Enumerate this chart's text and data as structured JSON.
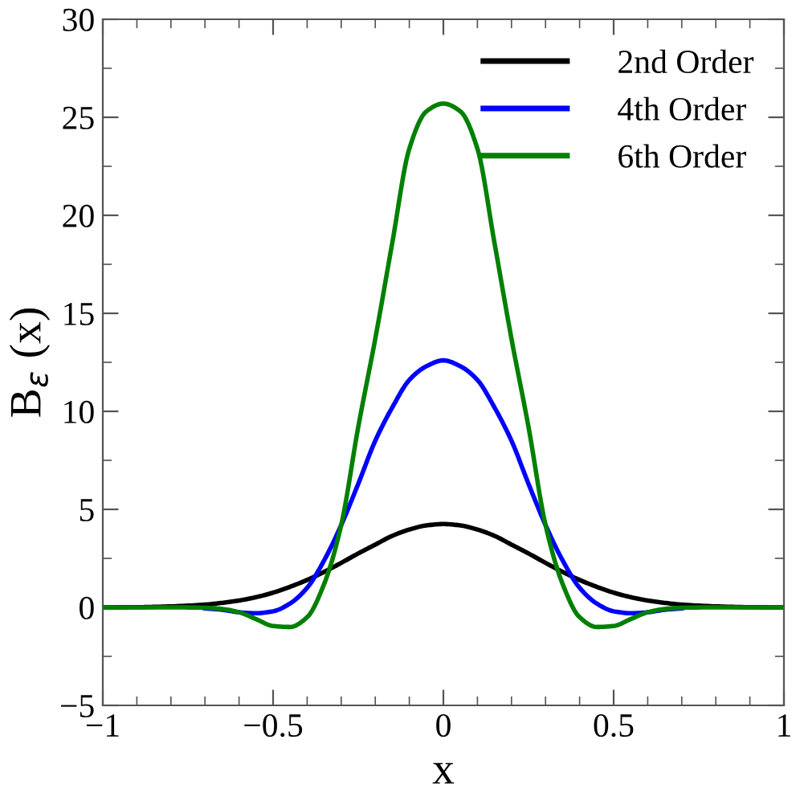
{
  "chart_data": {
    "type": "line",
    "xlabel": "x",
    "ylabel": "B$_{ε}$ (x)",
    "x": [
      -1,
      -0.9,
      -0.8,
      -0.7,
      -0.65,
      -0.6,
      -0.55,
      -0.5,
      -0.45,
      -0.4,
      -0.35,
      -0.3,
      -0.25,
      -0.2,
      -0.15,
      -0.1,
      -0.05,
      0,
      0.05,
      0.1,
      0.15,
      0.2,
      0.25,
      0.3,
      0.35,
      0.4,
      0.45,
      0.5,
      0.55,
      0.6,
      0.65,
      0.7,
      0.8,
      0.9,
      1
    ],
    "series": [
      {
        "name": "2nd Order",
        "color": "#000000",
        "values": [
          0,
          0.01,
          0.05,
          0.14,
          0.23,
          0.35,
          0.52,
          0.75,
          1.05,
          1.4,
          1.81,
          2.27,
          2.75,
          3.2,
          3.65,
          3.97,
          4.18,
          4.25,
          4.18,
          3.97,
          3.65,
          3.2,
          2.75,
          2.27,
          1.81,
          1.4,
          1.05,
          0.75,
          0.52,
          0.35,
          0.23,
          0.14,
          0.05,
          0.01,
          0
        ]
      },
      {
        "name": "4th Order",
        "color": "#0000ff",
        "values": [
          null,
          null,
          null,
          -0.05,
          -0.12,
          -0.25,
          -0.3,
          -0.2,
          0.2,
          1.0,
          2.4,
          4.2,
          6.3,
          8.5,
          10.2,
          11.6,
          12.3,
          12.6,
          12.3,
          11.6,
          10.2,
          8.5,
          6.3,
          4.2,
          2.4,
          1.0,
          0.2,
          -0.2,
          -0.3,
          -0.25,
          -0.12,
          -0.05,
          null,
          null,
          null
        ]
      },
      {
        "name": "6th Order",
        "color": "#008000",
        "values": [
          0,
          0,
          0,
          -0.02,
          -0.08,
          -0.25,
          -0.6,
          -0.95,
          -1.0,
          -0.5,
          1.2,
          4.2,
          9.2,
          13.7,
          18.6,
          23.4,
          25.3,
          25.7,
          25.3,
          23.4,
          18.6,
          13.7,
          9.2,
          4.2,
          1.2,
          -0.5,
          -1.0,
          -0.95,
          -0.6,
          -0.25,
          -0.08,
          -0.02,
          0,
          0,
          0
        ]
      }
    ],
    "xlim": [
      -1,
      1
    ],
    "xticks": [
      {
        "value": -1,
        "label": "−1"
      },
      {
        "value": -0.9,
        "label": null
      },
      {
        "value": -0.8,
        "label": null
      },
      {
        "value": -0.7,
        "label": null
      },
      {
        "value": -0.6,
        "label": null
      },
      {
        "value": -0.5,
        "label": "−0.5"
      },
      {
        "value": -0.4,
        "label": null
      },
      {
        "value": -0.3,
        "label": null
      },
      {
        "value": -0.2,
        "label": null
      },
      {
        "value": -0.1,
        "label": null
      },
      0,
      {
        "value": 0.1,
        "label": null
      },
      {
        "value": 0.2,
        "label": null
      },
      {
        "value": 0.3,
        "label": null
      },
      {
        "value": 0.4,
        "label": null
      },
      0.5,
      {
        "value": 0.6,
        "label": null
      },
      {
        "value": 0.7,
        "label": null
      },
      {
        "value": 0.8,
        "label": null
      },
      {
        "value": 0.9,
        "label": null
      },
      1
    ],
    "ylim": [
      -5,
      30
    ],
    "yticks": [
      {
        "value": -5,
        "label": "−5"
      },
      {
        "value": -2.5,
        "label": null
      },
      0,
      {
        "value": 2.5,
        "label": null
      },
      5,
      {
        "value": 7.5,
        "label": null
      },
      10,
      {
        "value": 12.5,
        "label": null
      },
      15,
      {
        "value": 17.5,
        "label": null
      },
      20,
      {
        "value": 22.5,
        "label": null
      },
      25,
      {
        "value": 27.5,
        "label": null
      },
      30
    ],
    "legend": "top right",
    "grid": false,
    "marker": "none",
    "line_style": "solid"
  }
}
